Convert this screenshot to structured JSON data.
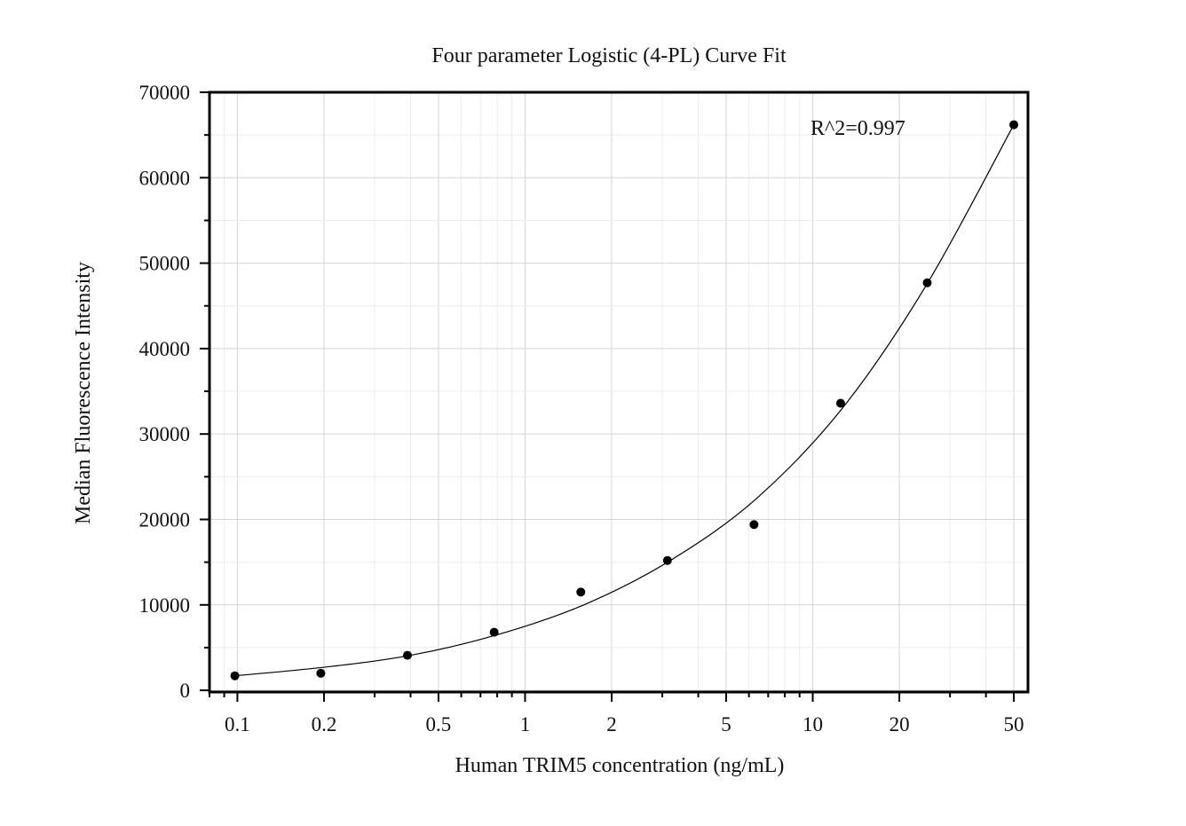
{
  "chart_data": {
    "type": "scatter",
    "title": "Four parameter Logistic (4-PL) Curve Fit",
    "xlabel": "Human TRIM5 concentration (ng/mL)",
    "ylabel": "Median Fluorescence Intensity",
    "x_scale": "log",
    "xlim": [
      0.08,
      56
    ],
    "ylim": [
      -200,
      70000
    ],
    "x_ticks": [
      0.1,
      0.2,
      0.5,
      1,
      2,
      5,
      10,
      20,
      50
    ],
    "x_tick_labels": [
      "0.1",
      "0.2",
      "0.5",
      "1",
      "2",
      "5",
      "10",
      "20",
      "50"
    ],
    "y_ticks": [
      0,
      10000,
      20000,
      30000,
      40000,
      50000,
      60000,
      70000
    ],
    "y_tick_labels": [
      "0",
      "10000",
      "20000",
      "30000",
      "40000",
      "50000",
      "60000",
      "70000"
    ],
    "grid": true,
    "annotation": "R^2=0.997",
    "series": [
      {
        "kind": "points",
        "color": "#000000",
        "x": [
          0.098,
          0.195,
          0.39,
          0.781,
          1.5625,
          3.125,
          6.25,
          12.5,
          25,
          50
        ],
        "y": [
          1700,
          2000,
          4100,
          6800,
          11500,
          15200,
          19400,
          33600,
          47700,
          66200
        ]
      },
      {
        "kind": "fit-curve",
        "color": "#000000",
        "x": [
          0.098,
          0.2,
          0.4,
          0.8,
          1.6,
          3.2,
          6.4,
          12.8,
          25,
          50
        ],
        "y": [
          1700,
          2700,
          4100,
          6500,
          10000,
          15200,
          22500,
          33200,
          47600,
          66200
        ]
      }
    ]
  }
}
